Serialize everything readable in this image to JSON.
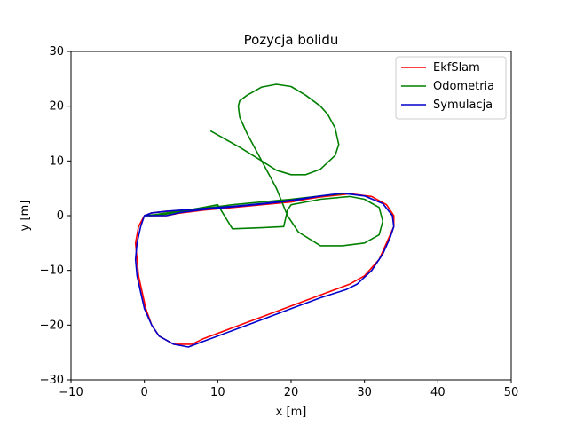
{
  "chart_data": {
    "type": "line",
    "title": "Pozycja bolidu",
    "xlabel": "x [m]",
    "ylabel": "y [m]",
    "xlim": [
      -10,
      50
    ],
    "ylim": [
      -30,
      30
    ],
    "xticks": [
      "−10",
      "0",
      "10",
      "20",
      "30",
      "40",
      "50"
    ],
    "yticks": [
      "−30",
      "−20",
      "−10",
      "0",
      "10",
      "20",
      "30"
    ],
    "grid": false,
    "legend_position": "top-right",
    "series": [
      {
        "name": "EkfSlam",
        "color": "#ff0000",
        "x": [
          0,
          3,
          5,
          8,
          12,
          16,
          20,
          24,
          28,
          31,
          33,
          34,
          34,
          33.5,
          33,
          32,
          30,
          28,
          24,
          20,
          16,
          12,
          8,
          6.5,
          4,
          2,
          1,
          0.2,
          -0.3,
          -0.8,
          -1,
          -1.2,
          -0.8,
          0,
          1,
          3,
          6,
          8,
          12,
          16,
          20,
          24,
          28
        ],
        "y": [
          0,
          0,
          0.5,
          1,
          1.5,
          2,
          2.5,
          3.5,
          4,
          3.5,
          2,
          0,
          -2,
          -3.5,
          -5,
          -8,
          -11,
          -12.5,
          -14.5,
          -16.5,
          -18.5,
          -20.5,
          -22.5,
          -23.5,
          -23.5,
          -22,
          -20,
          -17,
          -14,
          -11,
          -8,
          -5,
          -2,
          0,
          0.5,
          0.8,
          1,
          1.2,
          1.6,
          2.1,
          2.6,
          3.4,
          4
        ]
      },
      {
        "name": "Odometria",
        "color": "#008000",
        "x": [
          9,
          11,
          13,
          16,
          18,
          20,
          22,
          24,
          26,
          26.5,
          26,
          25,
          24,
          22,
          20,
          18,
          16,
          14,
          13,
          12.8,
          13,
          14,
          16,
          18,
          19.5,
          21,
          24,
          27,
          30,
          32,
          32.5,
          32,
          30,
          28,
          24,
          22,
          20,
          19.5,
          19,
          16,
          12,
          10,
          8,
          5,
          3,
          1.5,
          0,
          1,
          3,
          5,
          8,
          12,
          16,
          20,
          24,
          27
        ],
        "y": [
          15.5,
          14,
          12.5,
          10,
          8.3,
          7.5,
          7.5,
          8.5,
          11,
          13,
          16,
          18.5,
          20,
          22,
          23.6,
          24,
          23.5,
          22,
          21,
          20,
          18,
          15,
          10,
          5,
          0,
          -3,
          -5.5,
          -5.5,
          -5,
          -3.5,
          -1,
          1.5,
          3,
          3.5,
          3,
          2.5,
          2,
          1,
          -2,
          -2.2,
          -2.4,
          2,
          1.5,
          0.8,
          0.5,
          0.2,
          0,
          0,
          0.3,
          0.8,
          1.3,
          2,
          2.5,
          3,
          3.6,
          4
        ]
      },
      {
        "name": "Symulacja",
        "color": "#0000cc",
        "x": [
          0,
          3,
          5,
          8,
          12,
          16,
          20,
          24,
          27,
          30,
          32.5,
          33.8,
          34,
          33.5,
          32.5,
          31,
          29,
          27.5,
          24,
          20,
          16,
          12,
          8,
          6,
          4,
          2,
          1,
          0,
          -0.5,
          -1,
          -1.2,
          -1,
          -0.5,
          0,
          1,
          3,
          6,
          8,
          12,
          16,
          20,
          24,
          27
        ],
        "y": [
          0,
          0,
          0.6,
          1.1,
          1.6,
          2.1,
          2.7,
          3.6,
          4.1,
          3.6,
          2.2,
          0,
          -2,
          -4,
          -7,
          -10,
          -12.5,
          -13.5,
          -15,
          -17,
          -19,
          -21,
          -23,
          -24,
          -23.5,
          -22,
          -20,
          -17,
          -14,
          -11,
          -8,
          -5,
          -2,
          0,
          0.5,
          0.8,
          1.1,
          1.3,
          1.7,
          2.2,
          2.8,
          3.6,
          4.1
        ]
      }
    ]
  }
}
